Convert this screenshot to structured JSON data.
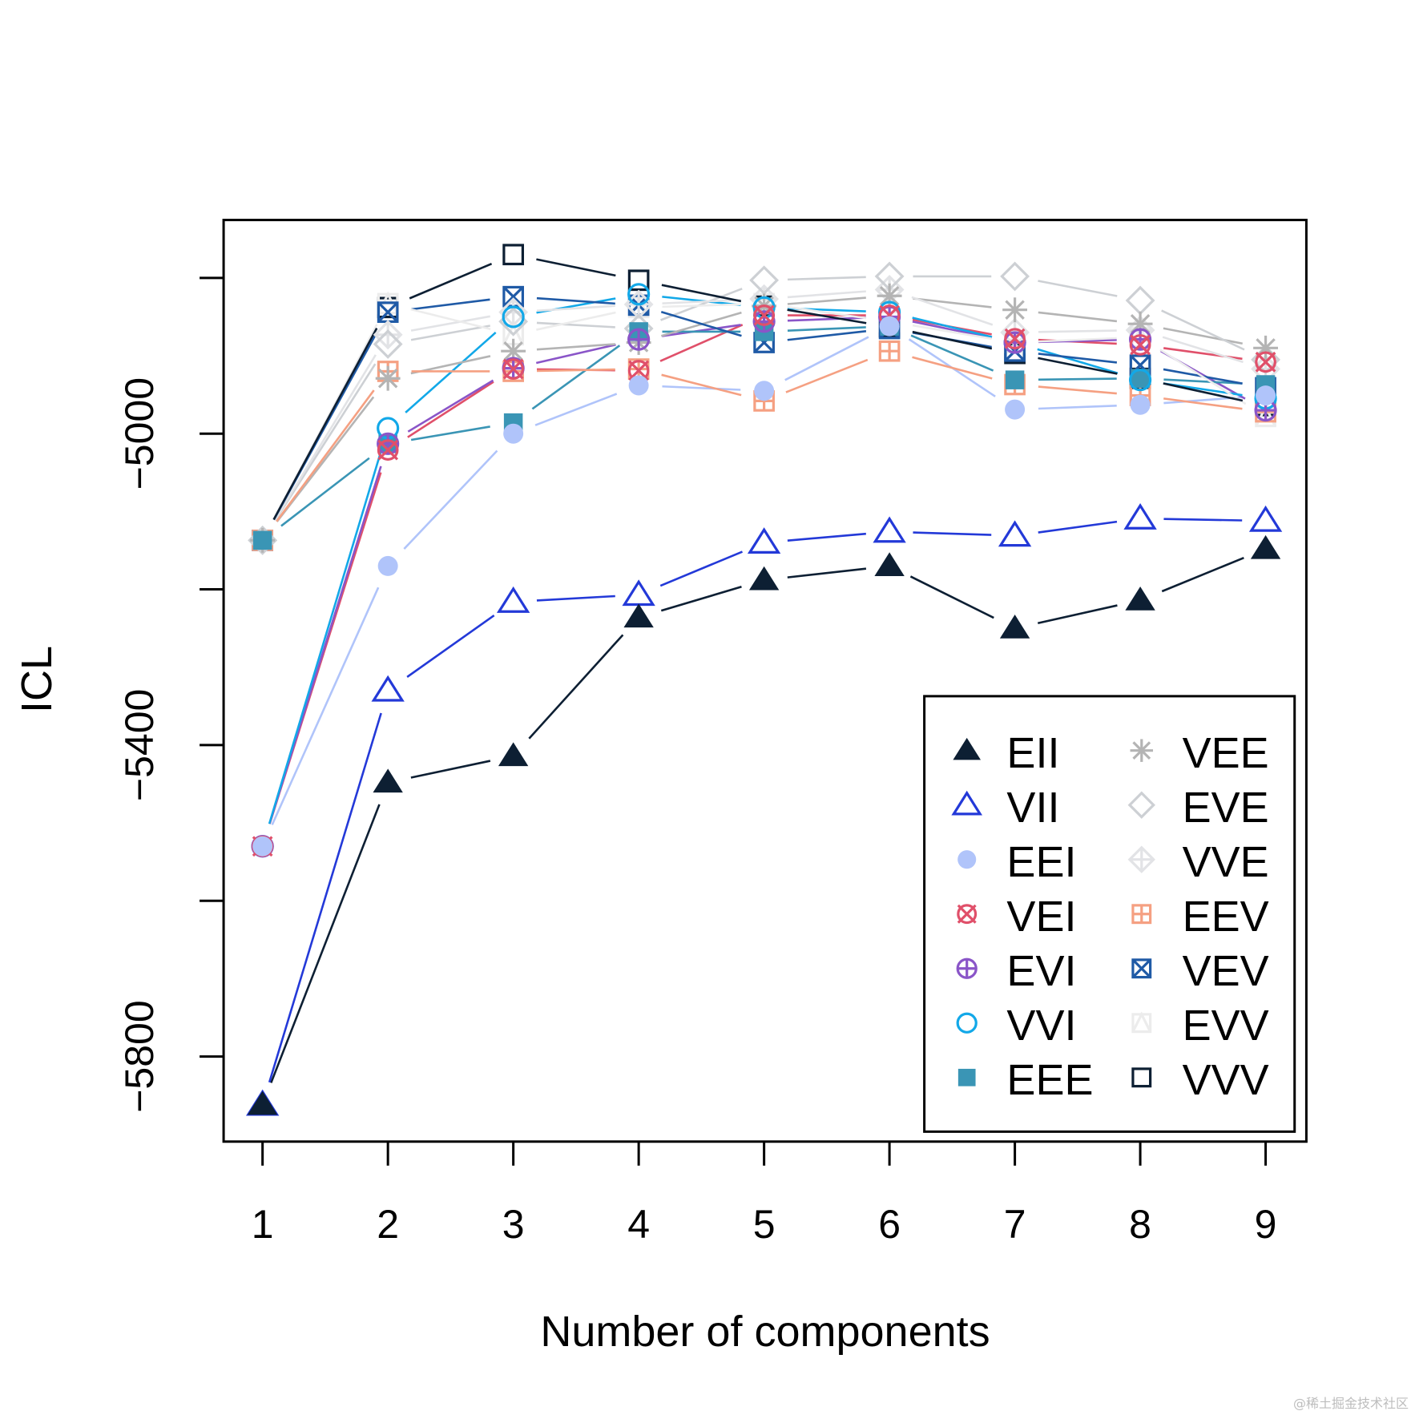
{
  "chart_data": {
    "type": "line",
    "title": "",
    "xlabel": "Number of components",
    "ylabel": "ICL",
    "x": [
      1,
      2,
      3,
      4,
      5,
      6,
      7,
      8,
      9
    ],
    "xticks": [
      "1",
      "2",
      "3",
      "4",
      "5",
      "6",
      "7",
      "8",
      "9"
    ],
    "yticks": [
      -5800,
      -5600,
      -5400,
      -5200,
      -5000,
      -4800
    ],
    "ytick_labels": [
      "−5800",
      "",
      "−5400",
      "",
      "−5000",
      ""
    ],
    "xlim": [
      0.69,
      9.31
    ],
    "ylim": [
      -5907,
      -4726
    ],
    "grid": false,
    "legend": {
      "position": "bottom-right",
      "columns": 2
    },
    "series": [
      {
        "name": "EII",
        "color": "#0d1f33",
        "marker": "triangle-filled",
        "values": [
          -5862,
          -5448,
          -5414,
          -5236,
          -5188,
          -5170,
          -5250,
          -5214,
          -5148
        ]
      },
      {
        "name": "VII",
        "color": "#2339d8",
        "marker": "triangle-open",
        "values": [
          -5862,
          -5330,
          -5216,
          -5207,
          -5140,
          -5126,
          -5131,
          -5109,
          -5112
        ]
      },
      {
        "name": "EEI",
        "color": "#b0c4fa",
        "marker": "circle-filled",
        "values": [
          -5530,
          -5170,
          -5000,
          -4938,
          -4945,
          -4862,
          -4969,
          -4963,
          -4951
        ]
      },
      {
        "name": "VEI",
        "color": "#e0506a",
        "marker": "circle-x",
        "values": [
          -5530,
          -5021,
          -4917,
          -4919,
          -4848,
          -4848,
          -4878,
          -4886,
          -4908
        ]
      },
      {
        "name": "EVI",
        "color": "#8a55c8",
        "marker": "circle-plus",
        "values": [
          -5530,
          -5013,
          -4916,
          -4879,
          -4856,
          -4850,
          -4883,
          -4879,
          -4970
        ]
      },
      {
        "name": "VVI",
        "color": "#12a8e8",
        "marker": "circle-open",
        "values": [
          -5530,
          -4993,
          -4850,
          -4821,
          -4838,
          -4844,
          -4883,
          -4931,
          -4955
        ]
      },
      {
        "name": "EEE",
        "color": "#3a95b5",
        "marker": "square-filled",
        "values": [
          -5137,
          -5013,
          -4986,
          -4869,
          -4869,
          -4862,
          -4931,
          -4929,
          -4937
        ]
      },
      {
        "name": "VEE",
        "color": "#b4b4b4",
        "marker": "asterisk",
        "values": [
          -5137,
          -4929,
          -4894,
          -4883,
          -4836,
          -4823,
          -4841,
          -4859,
          -4890
        ]
      },
      {
        "name": "EVE",
        "color": "#cdd0d4",
        "marker": "diamond-open",
        "values": [
          -5137,
          -4885,
          -4856,
          -4865,
          -4803,
          -4798,
          -4798,
          -4829,
          -4905
        ]
      },
      {
        "name": "VVE",
        "color": "#e2e3e6",
        "marker": "diamond-plus",
        "values": [
          -5137,
          -4873,
          -4844,
          -4834,
          -4827,
          -4815,
          -4870,
          -4867,
          -4917
        ]
      },
      {
        "name": "EEV",
        "color": "#f5a082",
        "marker": "square-plus",
        "values": [
          -5137,
          -4920,
          -4920,
          -4917,
          -4958,
          -4894,
          -4937,
          -4951,
          -4972
        ]
      },
      {
        "name": "VEV",
        "color": "#1f5aa6",
        "marker": "square-x",
        "values": [
          -5137,
          -4844,
          -4824,
          -4835,
          -4883,
          -4865,
          -4894,
          -4912,
          -4941
        ]
      },
      {
        "name": "EVV",
        "color": "#ececec",
        "marker": "square-triangle",
        "values": [
          -5137,
          -4833,
          -4873,
          -4838,
          -4833,
          -4856,
          -4883,
          -4876,
          -4978
        ]
      },
      {
        "name": "VVV",
        "color": "#0d1f33",
        "marker": "square-open",
        "values": [
          -5137,
          -4838,
          -4770,
          -4803,
          -4836,
          -4863,
          -4897,
          -4929,
          -4964
        ]
      }
    ]
  },
  "watermark": "@稀土掘金技术社区"
}
